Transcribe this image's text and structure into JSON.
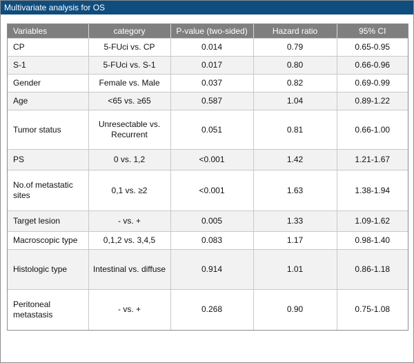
{
  "title": "Multivariate analysis for OS",
  "table": {
    "headers": [
      "Variables",
      "category",
      "P-value (two-sided)",
      "Hazard ratio",
      "95% CI"
    ],
    "rows": [
      {
        "variable": "CP",
        "category": "5-FUci vs. CP",
        "p_value": "0.014",
        "hazard_ratio": "0.79",
        "ci": "0.65-0.95"
      },
      {
        "variable": "S-1",
        "category": "5-FUci vs. S-1",
        "p_value": "0.017",
        "hazard_ratio": "0.80",
        "ci": "0.66-0.96"
      },
      {
        "variable": "Gender",
        "category": "Female vs. Male",
        "p_value": "0.037",
        "hazard_ratio": "0.82",
        "ci": "0.69-0.99"
      },
      {
        "variable": "Age",
        "category": "<65 vs. ≥65",
        "p_value": "0.587",
        "hazard_ratio": "1.04",
        "ci": "0.89-1.22"
      },
      {
        "variable": "Tumor status",
        "category": "Unresectable vs. Recurrent",
        "p_value": "0.051",
        "hazard_ratio": "0.81",
        "ci": "0.66-1.00"
      },
      {
        "variable": "PS",
        "category": "0 vs. 1,2",
        "p_value": "<0.001",
        "hazard_ratio": "1.42",
        "ci": "1.21-1.67"
      },
      {
        "variable": "No.of metastatic sites",
        "category": "0,1 vs. ≥2",
        "p_value": "<0.001",
        "hazard_ratio": "1.63",
        "ci": "1.38-1.94"
      },
      {
        "variable": "Target lesion",
        "category": "- vs. +",
        "p_value": "0.005",
        "hazard_ratio": "1.33",
        "ci": "1.09-1.62"
      },
      {
        "variable": "Macroscopic type",
        "category": "0,1,2 vs. 3,4,5",
        "p_value": "0.083",
        "hazard_ratio": "1.17",
        "ci": "0.98-1.40"
      },
      {
        "variable": "Histologic type",
        "category": "Intestinal vs. diffuse",
        "p_value": "0.914",
        "hazard_ratio": "1.01",
        "ci": "0.86-1.18"
      },
      {
        "variable": "Peritoneal metastasis",
        "category": "- vs. +",
        "p_value": "0.268",
        "hazard_ratio": "0.90",
        "ci": "0.75-1.08"
      }
    ]
  },
  "colors": {
    "title_bar": "#0f4d7e",
    "header_bg": "#7f7f7f",
    "alt_row": "#f2f2f2"
  }
}
